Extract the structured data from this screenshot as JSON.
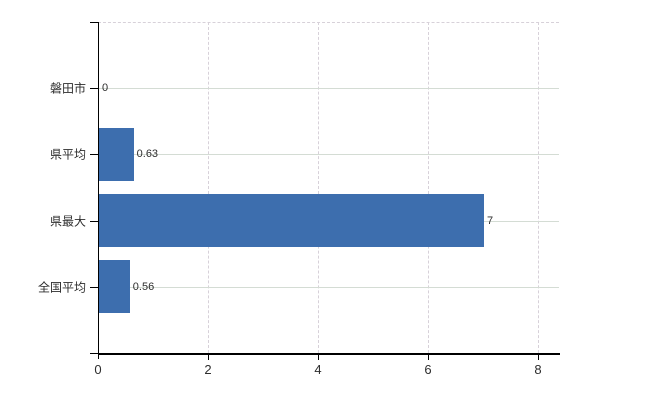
{
  "chart_data": {
    "type": "bar",
    "orientation": "horizontal",
    "title": "",
    "categories": [
      "磐田市",
      "県平均",
      "県最大",
      "全国平均"
    ],
    "values": [
      0,
      0.63,
      7,
      0.56
    ],
    "value_labels": [
      "0",
      "0.63",
      "7",
      "0.56"
    ],
    "x_ticks": [
      0,
      2,
      4,
      6,
      8
    ],
    "x_tick_labels": [
      "0",
      "2",
      "4",
      "6",
      "8"
    ],
    "xlim": [
      0,
      8.4
    ],
    "legend": false,
    "grid": {
      "horizontal": "solid",
      "vertical": "dashed",
      "top_boundary": "dashed"
    },
    "colors": {
      "bar": "#3d6eae",
      "h_grid": "#d4dcd4",
      "v_grid": "#d7d1d9",
      "axis": "#000000",
      "text": "#2d2d2d"
    }
  }
}
